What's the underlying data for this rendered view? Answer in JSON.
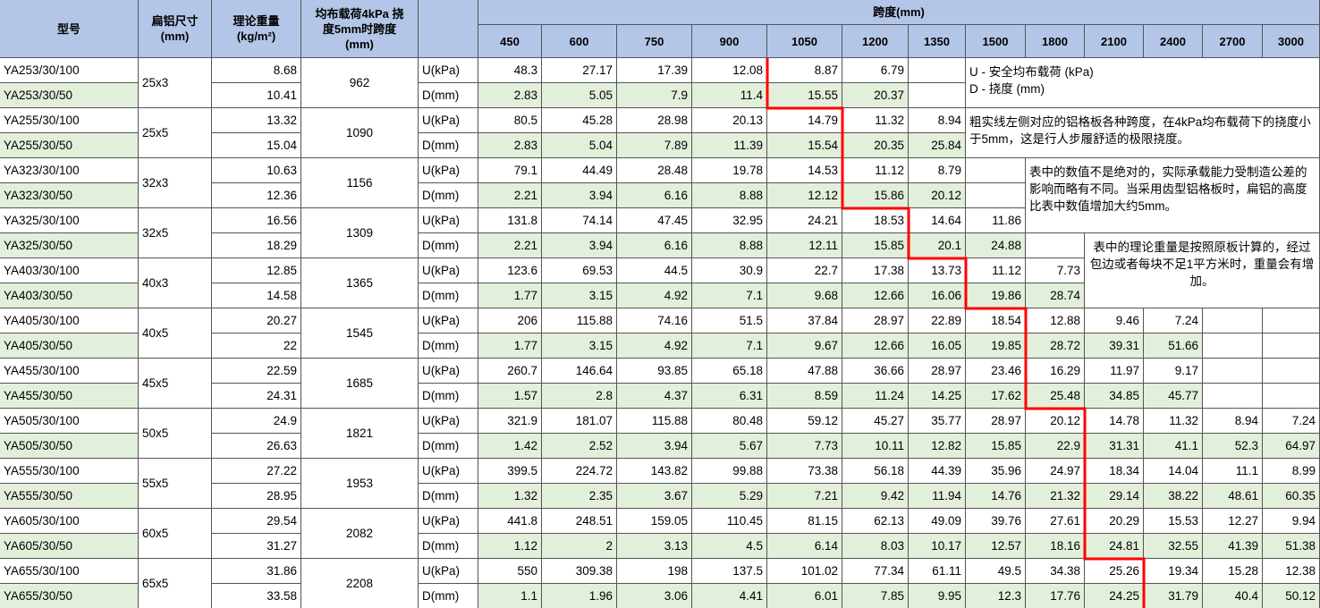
{
  "header": {
    "model": "型号",
    "size": "扁铝尺寸\n(mm)",
    "weight": "理论重量\n(kg/m²)",
    "span_limit": "均布载荷4kPa 挠\n度5mm时跨度\n(mm)",
    "span_group": "跨度(mm)",
    "spans": [
      450,
      600,
      750,
      900,
      1050,
      1200,
      1350,
      1500,
      1800,
      2100,
      2400,
      2700,
      3000
    ]
  },
  "u_label": "U(kPa)",
  "d_label": "D(mm)",
  "rows": [
    {
      "model_100": "YA253/30/100",
      "model_50": "YA253/30/50",
      "size": "25x3",
      "weight_100": 8.68,
      "weight_50": 10.41,
      "span": 962,
      "U": [
        48.3,
        27.17,
        17.39,
        12.08,
        8.87,
        6.79
      ],
      "D": [
        2.83,
        5.05,
        7.9,
        11.4,
        15.55,
        20.37
      ]
    },
    {
      "model_100": "YA255/30/100",
      "model_50": "YA255/30/50",
      "size": "25x5",
      "weight_100": 13.32,
      "weight_50": 15.04,
      "span": 1090,
      "U": [
        80.5,
        45.28,
        28.98,
        20.13,
        14.79,
        11.32,
        8.94
      ],
      "D": [
        2.83,
        5.04,
        7.89,
        11.39,
        15.54,
        20.35,
        25.84
      ]
    },
    {
      "model_100": "YA323/30/100",
      "model_50": "YA323/30/50",
      "size": "32x3",
      "weight_100": 10.63,
      "weight_50": 12.36,
      "span": 1156,
      "U": [
        79.1,
        44.49,
        28.48,
        19.78,
        14.53,
        11.12,
        8.79
      ],
      "D": [
        2.21,
        3.94,
        6.16,
        8.88,
        12.12,
        15.86,
        20.12
      ]
    },
    {
      "model_100": "YA325/30/100",
      "model_50": "YA325/30/50",
      "size": "32x5",
      "weight_100": 16.56,
      "weight_50": 18.29,
      "span": 1309,
      "U": [
        131.8,
        74.14,
        47.45,
        32.95,
        24.21,
        18.53,
        14.64,
        11.86
      ],
      "D": [
        2.21,
        3.94,
        6.16,
        8.88,
        12.11,
        15.85,
        20.1,
        24.88
      ]
    },
    {
      "model_100": "YA403/30/100",
      "model_50": "YA403/30/50",
      "size": "40x3",
      "weight_100": 12.85,
      "weight_50": 14.58,
      "span": 1365,
      "U": [
        123.6,
        69.53,
        44.5,
        30.9,
        22.7,
        17.38,
        13.73,
        11.12,
        7.73
      ],
      "D": [
        1.77,
        3.15,
        4.92,
        7.1,
        9.68,
        12.66,
        16.06,
        19.86,
        28.74
      ]
    },
    {
      "model_100": "YA405/30/100",
      "model_50": "YA405/30/50",
      "size": "40x5",
      "weight_100": 20.27,
      "weight_50": 22,
      "span": 1545,
      "U": [
        206,
        115.88,
        74.16,
        51.5,
        37.84,
        28.97,
        22.89,
        18.54,
        12.88,
        9.46,
        7.24
      ],
      "D": [
        1.77,
        3.15,
        4.92,
        7.1,
        9.67,
        12.66,
        16.05,
        19.85,
        28.72,
        39.31,
        51.66
      ]
    },
    {
      "model_100": "YA455/30/100",
      "model_50": "YA455/30/50",
      "size": "45x5",
      "weight_100": 22.59,
      "weight_50": 24.31,
      "span": 1685,
      "U": [
        260.7,
        146.64,
        93.85,
        65.18,
        47.88,
        36.66,
        28.97,
        23.46,
        16.29,
        11.97,
        9.17
      ],
      "D": [
        1.57,
        2.8,
        4.37,
        6.31,
        8.59,
        11.24,
        14.25,
        17.62,
        25.48,
        34.85,
        45.77
      ]
    },
    {
      "model_100": "YA505/30/100",
      "model_50": "YA505/30/50",
      "size": "50x5",
      "weight_100": 24.9,
      "weight_50": 26.63,
      "span": 1821,
      "U": [
        321.9,
        181.07,
        115.88,
        80.48,
        59.12,
        45.27,
        35.77,
        28.97,
        20.12,
        14.78,
        11.32,
        8.94,
        7.24
      ],
      "D": [
        1.42,
        2.52,
        3.94,
        5.67,
        7.73,
        10.11,
        12.82,
        15.85,
        22.9,
        31.31,
        41.1,
        52.3,
        64.97
      ]
    },
    {
      "model_100": "YA555/30/100",
      "model_50": "YA555/30/50",
      "size": "55x5",
      "weight_100": 27.22,
      "weight_50": 28.95,
      "span": 1953,
      "U": [
        399.5,
        224.72,
        143.82,
        99.88,
        73.38,
        56.18,
        44.39,
        35.96,
        24.97,
        18.34,
        14.04,
        11.1,
        8.99
      ],
      "D": [
        1.32,
        2.35,
        3.67,
        5.29,
        7.21,
        9.42,
        11.94,
        14.76,
        21.32,
        29.14,
        38.22,
        48.61,
        60.35
      ]
    },
    {
      "model_100": "YA605/30/100",
      "model_50": "YA605/30/50",
      "size": "60x5",
      "weight_100": 29.54,
      "weight_50": 31.27,
      "span": 2082,
      "U": [
        441.8,
        248.51,
        159.05,
        110.45,
        81.15,
        62.13,
        49.09,
        39.76,
        27.61,
        20.29,
        15.53,
        12.27,
        9.94
      ],
      "D": [
        1.12,
        2,
        3.13,
        4.5,
        6.14,
        8.03,
        10.17,
        12.57,
        18.16,
        24.81,
        32.55,
        41.39,
        51.38
      ]
    },
    {
      "model_100": "YA655/30/100",
      "model_50": "YA655/30/50",
      "size": "65x5",
      "weight_100": 31.86,
      "weight_50": 33.58,
      "span": 2208,
      "U": [
        550,
        309.38,
        198,
        137.5,
        101.02,
        77.34,
        61.11,
        49.5,
        34.38,
        25.26,
        19.34,
        15.28,
        12.38
      ],
      "D": [
        1.1,
        1.96,
        3.06,
        4.41,
        6.01,
        7.85,
        9.95,
        12.3,
        17.76,
        24.25,
        31.79,
        40.4,
        50.12
      ]
    }
  ],
  "notes": [
    "U - 安全均布载荷 (kPa)\nD - 挠度 (mm)",
    "粗实线左侧对应的铝格板各种跨度，在4kPa均布载荷下的挠度小于5mm，这是行人步履舒适的极限挠度。",
    "表中的数值不是绝对的，实际承载能力受制造公差的影响而略有不同。当采用齿型铝格板时，扁铝的高度比表中数值增加大约5mm。",
    "表中的理论重量是按照原板计算的，经过包边或者每块不足1平方米时，重量会有增加。"
  ]
}
